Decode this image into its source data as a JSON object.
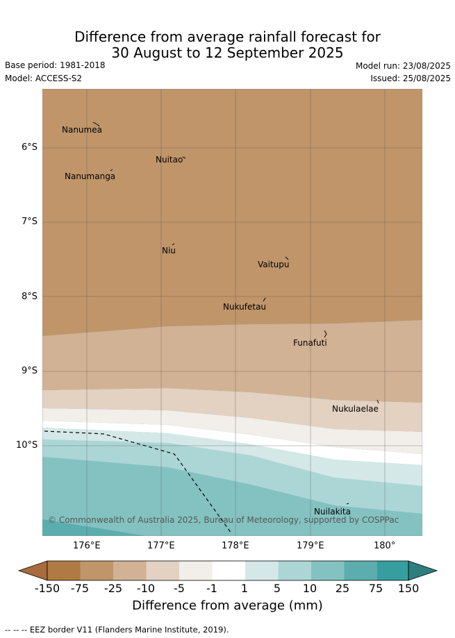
{
  "title": {
    "line1": "Difference from average rainfall forecast for",
    "line2": "30 August to 12 September 2025"
  },
  "meta": {
    "base_period": "Base period: 1981-2018",
    "model": "Model: ACCESS-S2",
    "model_run": "Model run: 23/08/2025",
    "issued": "Issued: 25/08/2025"
  },
  "axes": {
    "lat_labels": [
      "6°S",
      "7°S",
      "8°S",
      "9°S",
      "10°S"
    ],
    "lon_labels": [
      "176°E",
      "177°E",
      "178°E",
      "179°E",
      "180°"
    ]
  },
  "places": [
    {
      "name": "Nanumea"
    },
    {
      "name": "Nuitao"
    },
    {
      "name": "Nanumanga"
    },
    {
      "name": "Niu"
    },
    {
      "name": "Vaitupu"
    },
    {
      "name": "Nukufetau"
    },
    {
      "name": "Funafuti"
    },
    {
      "name": "Nukulaelae"
    },
    {
      "name": "Nuilakita"
    }
  ],
  "copyright": "© Commonwealth of Australia 2025, Bureau of Meteorology, supported by COSPPac",
  "colorbar": {
    "labels": [
      "-150",
      "-75",
      "-25",
      "-10",
      "-5",
      "-1",
      "1",
      "5",
      "10",
      "25",
      "75",
      "150"
    ],
    "colors": [
      "#a86b3c",
      "#b07a44",
      "#c0956a",
      "#d2b294",
      "#e3d1c1",
      "#f2eee9",
      "#ffffff",
      "#d4e8e7",
      "#acd6d6",
      "#84c2c2",
      "#5cadad",
      "#369e9e",
      "#2e7e7e"
    ],
    "title": "Difference from average (mm)"
  },
  "map_colors": {
    "brown": "#c0956a",
    "tan": "#d2b294",
    "light_tan": "#e3d1c1",
    "cream": "#f2eee9",
    "white": "#ffffff",
    "pale_teal": "#d4e8e7",
    "light_teal": "#acd6d6",
    "teal": "#84c2c2",
    "dark_teal": "#5cadad"
  },
  "footer": "--  --  -- EEZ border V11 (Flanders Marine Institute, 2019)."
}
